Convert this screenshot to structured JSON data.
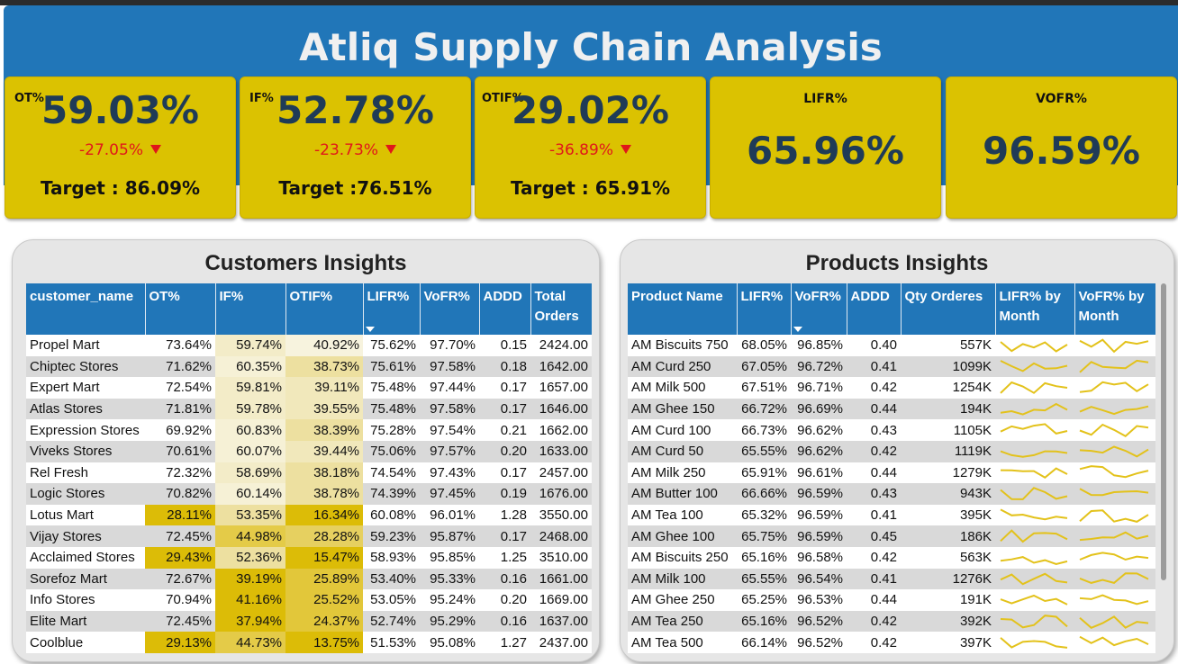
{
  "title": "Atliq Supply Chain Analysis",
  "kpis": {
    "ot": {
      "label": "OT%",
      "value": "59.03%",
      "change": "-27.05%",
      "target": "Target : 86.09%"
    },
    "if": {
      "label": "IF%",
      "value": "52.78%",
      "change": "-23.73%",
      "target": "Target :76.51%"
    },
    "otif": {
      "label": "OTIF%",
      "value": "29.02%",
      "change": "-36.89%",
      "target": "Target : 65.91%"
    },
    "lifr": {
      "label": "LIFR%",
      "value": "65.96%"
    },
    "vofr": {
      "label": "VOFR%",
      "value": "96.59%"
    }
  },
  "colors": {
    "accent_blue": "#2176b8",
    "kpi_yellow": "#dbc201",
    "negative_red": "#e0161a",
    "value_navy": "#1f3b57",
    "sparkline": "#e3c21b"
  },
  "icons": {
    "change_arrow": "triangle-down-icon",
    "sort": "sort-desc-icon"
  },
  "customers": {
    "title": "Customers Insights",
    "columns": [
      "customer_name",
      "OT%",
      "IF%",
      "OTIF%",
      "LIFR%",
      "VoFR%",
      "ADDD",
      "Total Orders"
    ],
    "rows": [
      [
        "Propel Mart",
        "73.64%",
        "59.74%",
        "40.92%",
        "75.62%",
        "97.70%",
        "0.15",
        "2424.00"
      ],
      [
        "Chiptec Stores",
        "71.62%",
        "60.35%",
        "38.73%",
        "75.61%",
        "97.58%",
        "0.18",
        "1642.00"
      ],
      [
        "Expert Mart",
        "72.54%",
        "59.81%",
        "39.11%",
        "75.48%",
        "97.44%",
        "0.17",
        "1657.00"
      ],
      [
        "Atlas Stores",
        "71.81%",
        "59.78%",
        "39.55%",
        "75.48%",
        "97.58%",
        "0.17",
        "1646.00"
      ],
      [
        "Expression Stores",
        "69.92%",
        "60.83%",
        "38.39%",
        "75.28%",
        "97.54%",
        "0.21",
        "1662.00"
      ],
      [
        "Viveks Stores",
        "70.61%",
        "60.07%",
        "39.44%",
        "75.06%",
        "97.57%",
        "0.20",
        "1633.00"
      ],
      [
        "Rel Fresh",
        "72.32%",
        "58.69%",
        "38.18%",
        "74.54%",
        "97.43%",
        "0.17",
        "2457.00"
      ],
      [
        "Logic Stores",
        "70.82%",
        "60.14%",
        "38.78%",
        "74.39%",
        "97.45%",
        "0.19",
        "1676.00"
      ],
      [
        "Lotus Mart",
        "28.11%",
        "53.35%",
        "16.34%",
        "60.08%",
        "96.01%",
        "1.28",
        "3550.00"
      ],
      [
        "Vijay Stores",
        "72.45%",
        "44.98%",
        "28.28%",
        "59.23%",
        "95.87%",
        "0.17",
        "2468.00"
      ],
      [
        "Acclaimed Stores",
        "29.43%",
        "52.36%",
        "15.47%",
        "58.93%",
        "95.85%",
        "1.25",
        "3510.00"
      ],
      [
        "Sorefoz Mart",
        "72.67%",
        "39.19%",
        "25.89%",
        "53.40%",
        "95.33%",
        "0.16",
        "1661.00"
      ],
      [
        "Info Stores",
        "70.94%",
        "41.16%",
        "25.52%",
        "53.05%",
        "95.24%",
        "0.20",
        "1669.00"
      ],
      [
        "Elite Mart",
        "72.45%",
        "37.94%",
        "24.37%",
        "52.74%",
        "95.29%",
        "0.16",
        "1637.00"
      ],
      [
        "Coolblue",
        "29.13%",
        "44.73%",
        "13.75%",
        "51.53%",
        "95.08%",
        "1.27",
        "2437.00"
      ]
    ]
  },
  "products": {
    "title": "Products Insights",
    "columns": [
      "Product Name",
      "LIFR%",
      "VoFR%",
      "ADDD",
      "Qty Orderes",
      "LIFR% by Month",
      "VoFR% by Month"
    ],
    "rows": [
      [
        "AM Biscuits 750",
        "68.05%",
        "96.85%",
        "0.40",
        "557K"
      ],
      [
        "AM Curd 250",
        "67.05%",
        "96.72%",
        "0.41",
        "1099K"
      ],
      [
        "AM Milk 500",
        "67.51%",
        "96.71%",
        "0.42",
        "1254K"
      ],
      [
        "AM Ghee 150",
        "66.72%",
        "96.69%",
        "0.44",
        "194K"
      ],
      [
        "AM Curd 100",
        "66.73%",
        "96.62%",
        "0.43",
        "1105K"
      ],
      [
        "AM Curd 50",
        "65.55%",
        "96.62%",
        "0.42",
        "1119K"
      ],
      [
        "AM Milk 250",
        "65.91%",
        "96.61%",
        "0.44",
        "1279K"
      ],
      [
        "AM Butter 100",
        "66.66%",
        "96.59%",
        "0.43",
        "943K"
      ],
      [
        "AM Tea 100",
        "65.32%",
        "96.59%",
        "0.41",
        "395K"
      ],
      [
        "AM Ghee 100",
        "65.75%",
        "96.59%",
        "0.45",
        "186K"
      ],
      [
        "AM Biscuits 250",
        "65.16%",
        "96.58%",
        "0.42",
        "563K"
      ],
      [
        "AM Milk 100",
        "65.55%",
        "96.54%",
        "0.41",
        "1276K"
      ],
      [
        "AM Ghee 250",
        "65.25%",
        "96.53%",
        "0.44",
        "191K"
      ],
      [
        "AM Tea 250",
        "65.16%",
        "96.52%",
        "0.42",
        "392K"
      ],
      [
        "AM Tea 500",
        "66.14%",
        "96.52%",
        "0.42",
        "397K"
      ]
    ]
  }
}
